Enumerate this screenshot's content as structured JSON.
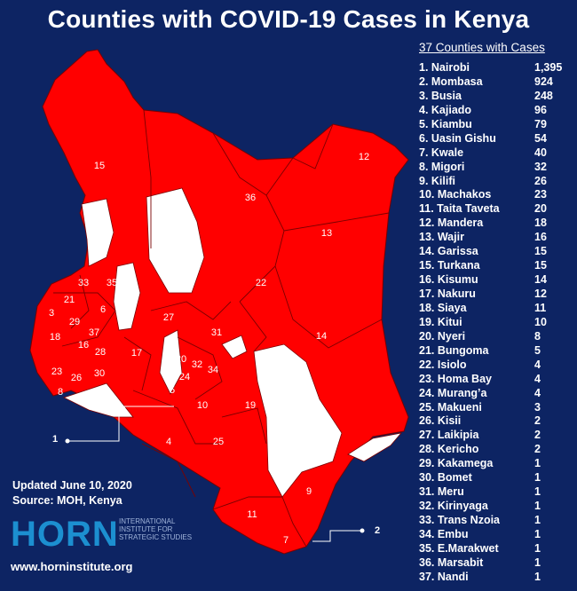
{
  "title": "Counties with COVID-19 Cases in Kenya",
  "list_header": "37 Counties with Cases",
  "counties": [
    {
      "rank": "1. Nairobi",
      "cases": "1,395"
    },
    {
      "rank": "2. Mombasa",
      "cases": "924"
    },
    {
      "rank": "3. Busia",
      "cases": "248"
    },
    {
      "rank": "4. Kajiado",
      "cases": "96"
    },
    {
      "rank": "5. Kiambu",
      "cases": "79"
    },
    {
      "rank": "6. Uasin Gishu",
      "cases": "54"
    },
    {
      "rank": "7. Kwale",
      "cases": "40"
    },
    {
      "rank": "8. Migori",
      "cases": "32"
    },
    {
      "rank": "9. Kilifi",
      "cases": "26"
    },
    {
      "rank": "10. Machakos",
      "cases": "23"
    },
    {
      "rank": "11. Taita Taveta",
      "cases": "20"
    },
    {
      "rank": "12. Mandera",
      "cases": "18"
    },
    {
      "rank": "13. Wajir",
      "cases": "16"
    },
    {
      "rank": "14. Garissa",
      "cases": "15"
    },
    {
      "rank": "15. Turkana",
      "cases": "15"
    },
    {
      "rank": "16. Kisumu",
      "cases": "14"
    },
    {
      "rank": "17. Nakuru",
      "cases": "12"
    },
    {
      "rank": "18. Siaya",
      "cases": "11"
    },
    {
      "rank": "19. Kitui",
      "cases": "10"
    },
    {
      "rank": "20. Nyeri",
      "cases": "8"
    },
    {
      "rank": "21. Bungoma",
      "cases": "5"
    },
    {
      "rank": "22. Isiolo",
      "cases": "4"
    },
    {
      "rank": "23. Homa Bay",
      "cases": "4"
    },
    {
      "rank": "24. Murang’a",
      "cases": "4"
    },
    {
      "rank": "25. Makueni",
      "cases": "3"
    },
    {
      "rank": "26. Kisii",
      "cases": "2"
    },
    {
      "rank": "27. Laikipia",
      "cases": "2"
    },
    {
      "rank": "28. Kericho",
      "cases": "2"
    },
    {
      "rank": "29. Kakamega",
      "cases": "1"
    },
    {
      "rank": "30. Bomet",
      "cases": "1"
    },
    {
      "rank": "31. Meru",
      "cases": "1"
    },
    {
      "rank": "32. Kirinyaga",
      "cases": "1"
    },
    {
      "rank": "33. Trans Nzoia",
      "cases": "1"
    },
    {
      "rank": "34. Embu",
      "cases": "1"
    },
    {
      "rank": "35. E.Marakwet",
      "cases": "1"
    },
    {
      "rank": "36. Marsabit",
      "cases": "1"
    },
    {
      "rank": "37. Nandi",
      "cases": "1"
    }
  ],
  "map_labels": [
    "15",
    "12",
    "36",
    "13",
    "22",
    "14",
    "33",
    "35",
    "21",
    "3",
    "6",
    "29",
    "37",
    "27",
    "31",
    "18",
    "16",
    "28",
    "17",
    "23",
    "26",
    "30",
    "20",
    "32",
    "24",
    "34",
    "8",
    "5",
    "10",
    "19",
    "1",
    "4",
    "25",
    "9",
    "11",
    "7",
    "2"
  ],
  "updated": "Updated June 10, 2020",
  "source": "Source: MOH, Kenya",
  "logo": {
    "word": "HORN",
    "subtitle": "International Institute for Strategic Studies"
  },
  "website": "www.horninstitute.org",
  "colors": {
    "background": "#0d2463",
    "affected": "#ff0000",
    "unaffected": "#ffffff",
    "border": "#7a0000",
    "logo": "#1c8fd0"
  }
}
